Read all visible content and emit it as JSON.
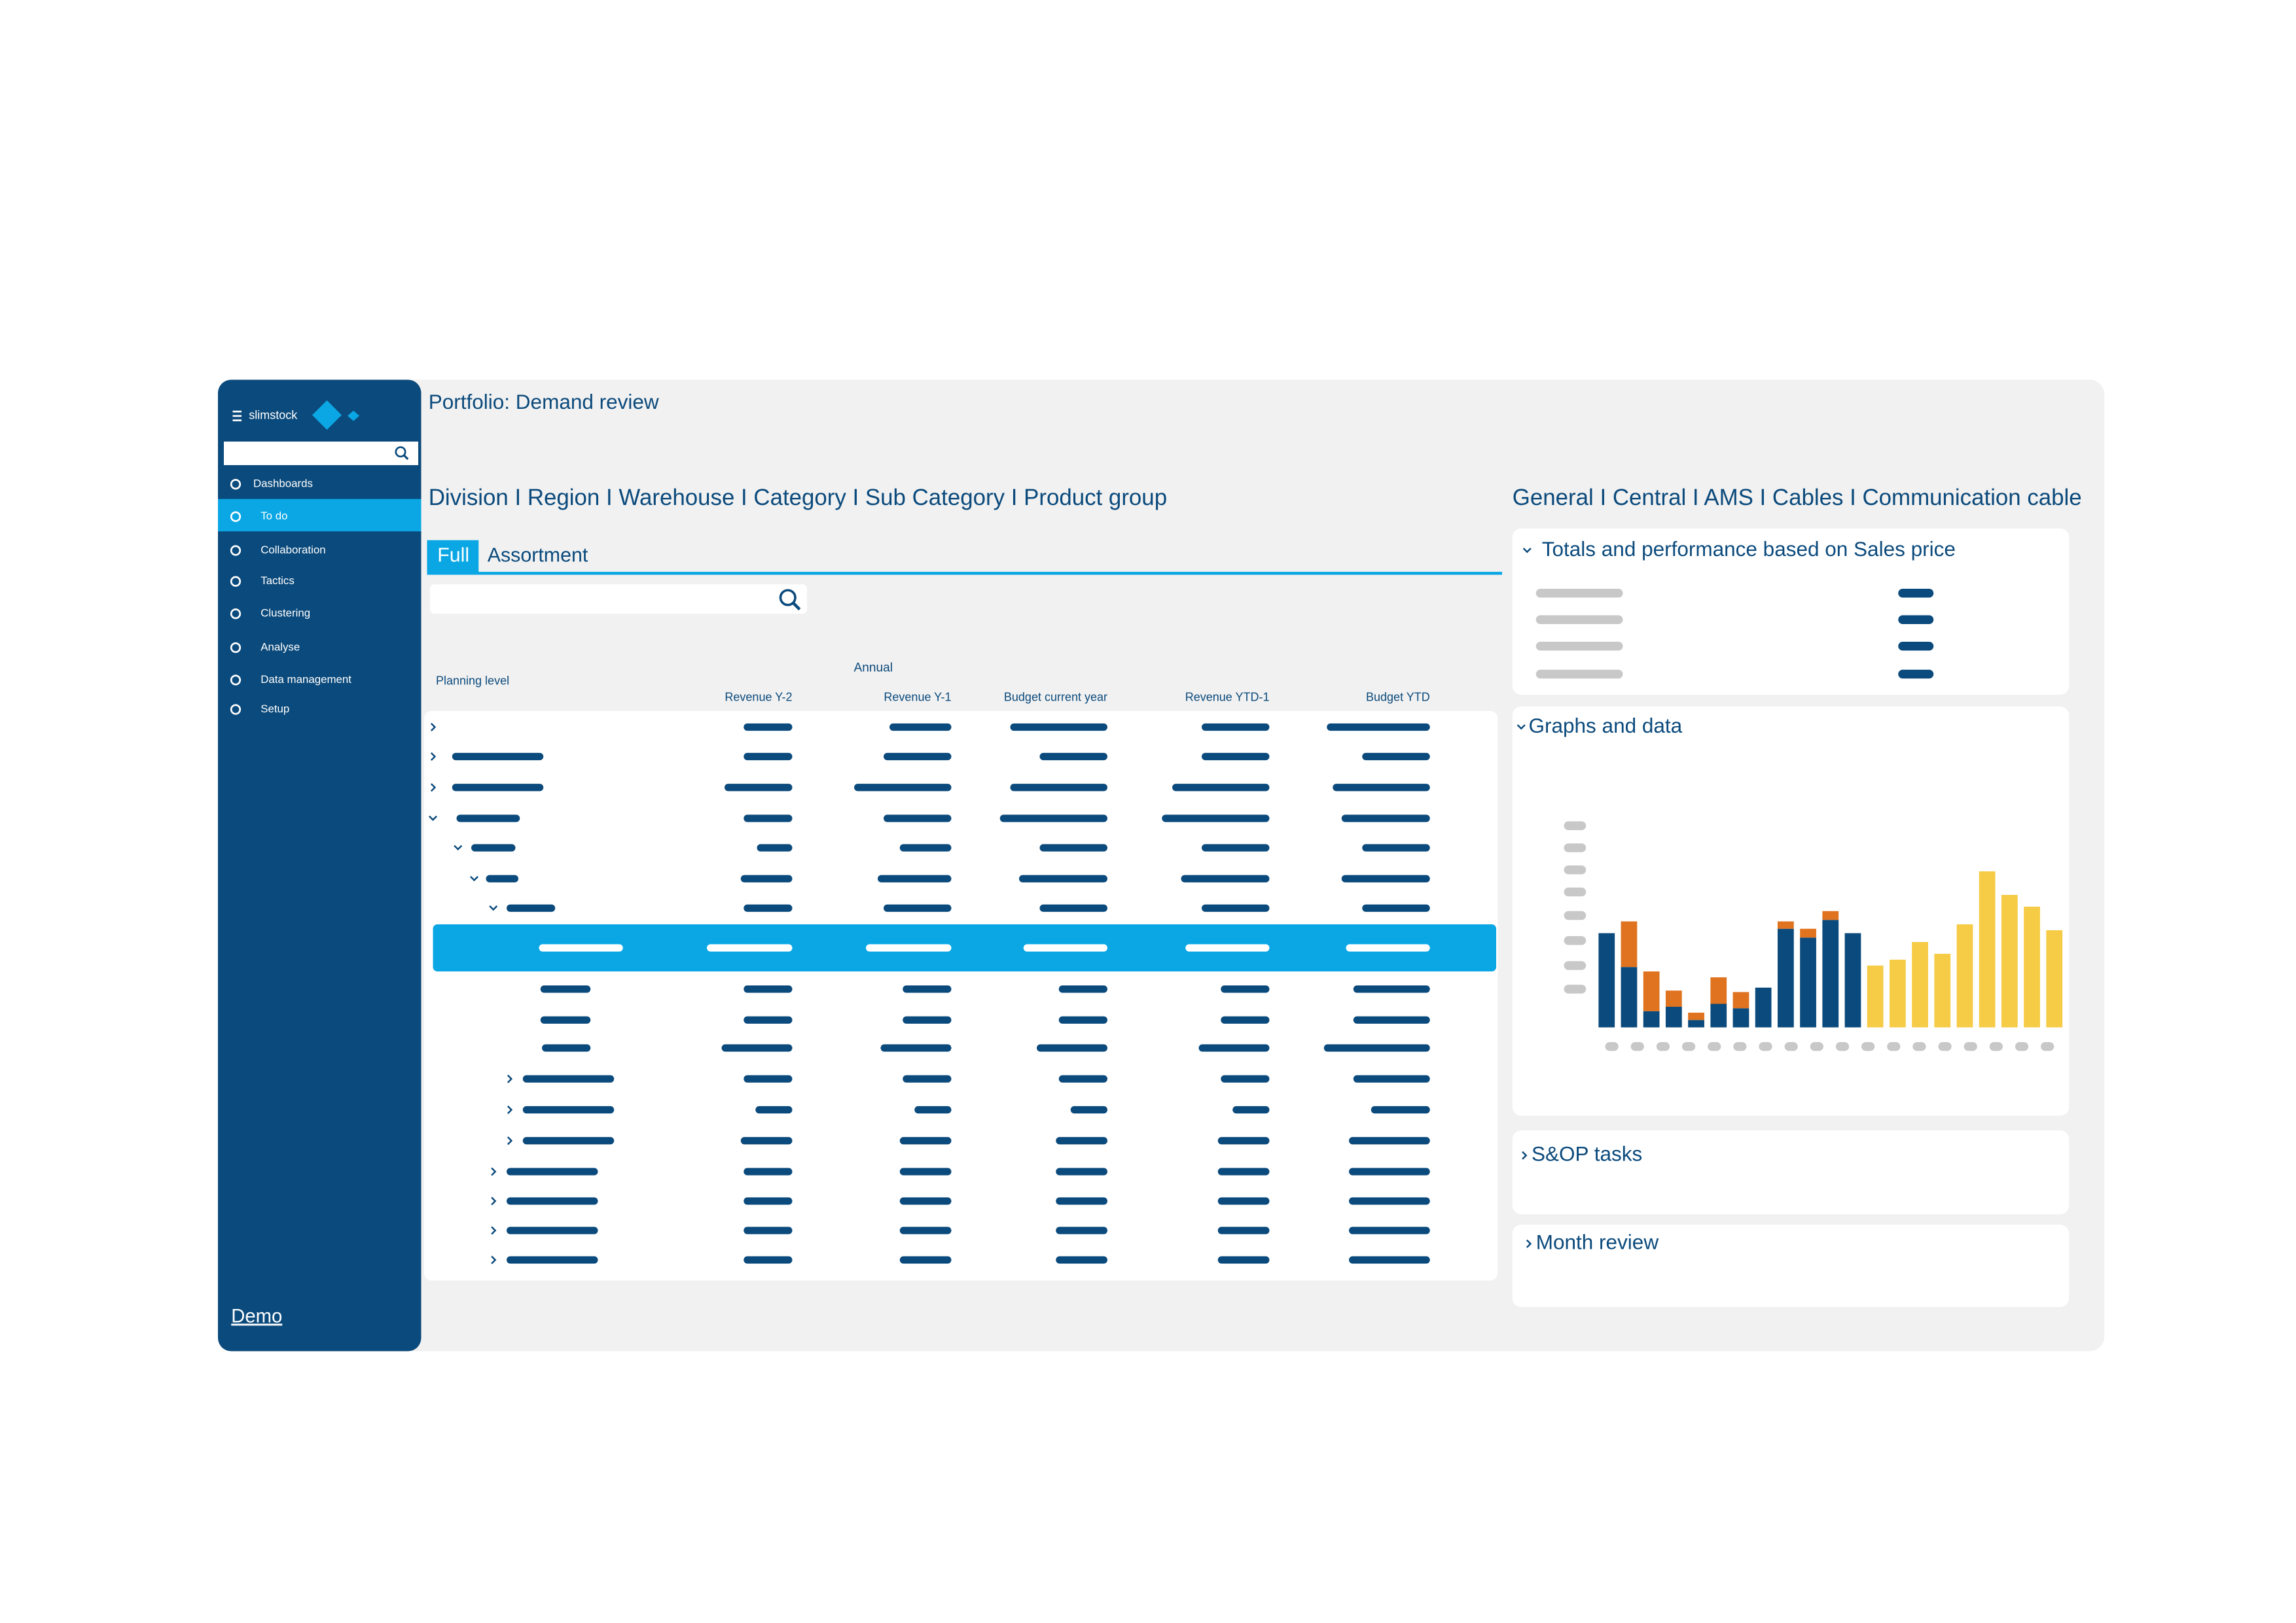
{
  "sidebar": {
    "brand": "slimstock",
    "menu": [
      "Dashboards",
      "To do",
      "Collaboration",
      "Tactics",
      "Clustering",
      "Analyse",
      "Data management",
      "Setup"
    ],
    "footer": "Demo"
  },
  "header": {
    "title": "Portfolio: Demand review"
  },
  "left": {
    "breadcrumb": "Division I Region I Warehouse I Category I Sub Category I Product group",
    "tabs": [
      "Full",
      "Assortment"
    ],
    "table": {
      "group_header": "Annual",
      "columns": [
        "Planning level",
        "Revenue Y-2",
        "Revenue Y-1",
        "Budget current year",
        "Revenue YTD-1",
        "Budget YTD"
      ]
    }
  },
  "right": {
    "breadcrumb": "General I Central I AMS I Cables I Communication cable",
    "panels": [
      {
        "title": "Totals and performance based on Sales price"
      },
      {
        "title": "Graphs and data"
      },
      {
        "title": "S&OP tasks"
      },
      {
        "title": "Month review"
      }
    ]
  },
  "chart_data": {
    "type": "bar",
    "stacked": true,
    "categories": [
      null,
      null,
      null,
      null,
      null,
      null,
      null,
      null,
      null,
      null,
      null,
      null,
      null,
      null,
      null,
      null,
      null,
      null,
      null,
      null,
      null
    ],
    "series": [
      {
        "color": "#0b4a7c",
        "values": [
          64,
          41,
          11,
          14,
          5,
          16,
          13,
          27,
          67,
          61,
          73,
          64,
          null,
          null,
          null,
          null,
          null,
          null,
          null,
          null,
          null
        ]
      },
      {
        "color": "#e0731f",
        "values": [
          null,
          31,
          27,
          11,
          5,
          18,
          11,
          null,
          5,
          6,
          6,
          null,
          null,
          null,
          null,
          null,
          null,
          null,
          null,
          null,
          null
        ]
      },
      {
        "color": "#f6cb45",
        "values": [
          null,
          null,
          null,
          null,
          null,
          null,
          null,
          null,
          null,
          null,
          null,
          null,
          42,
          46,
          58,
          50,
          70,
          106,
          90,
          82,
          66
        ]
      }
    ]
  }
}
